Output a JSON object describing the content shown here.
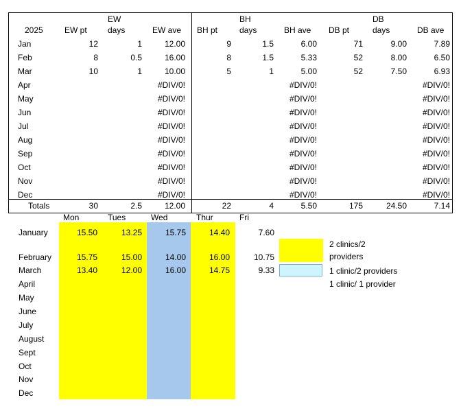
{
  "top_table": {
    "year": "2025",
    "headers": {
      "ew_group": "EW",
      "ew_pt": "EW pt",
      "ew_days": "days",
      "ew_ave": "EW ave",
      "bh_group": "BH",
      "bh_pt": "BH pt",
      "bh_days": "days",
      "bh_ave": "BH ave",
      "db_group": "DB",
      "db_pt": "DB pt",
      "db_days": "days",
      "db_ave": "DB ave"
    },
    "rows": [
      {
        "month": "Jan",
        "ew_pt": "12",
        "ew_days": "1",
        "ew_ave": "12.00",
        "bh_pt": "9",
        "bh_days": "1.5",
        "bh_ave": "6.00",
        "db_pt": "71",
        "db_days": "9.00",
        "db_ave": "7.89"
      },
      {
        "month": "Feb",
        "ew_pt": "8",
        "ew_days": "0.5",
        "ew_ave": "16.00",
        "bh_pt": "8",
        "bh_days": "1.5",
        "bh_ave": "5.33",
        "db_pt": "52",
        "db_days": "8.00",
        "db_ave": "6.50"
      },
      {
        "month": "Mar",
        "ew_pt": "10",
        "ew_days": "1",
        "ew_ave": "10.00",
        "bh_pt": "5",
        "bh_days": "1",
        "bh_ave": "5.00",
        "db_pt": "52",
        "db_days": "7.50",
        "db_ave": "6.93"
      },
      {
        "month": "Apr",
        "ew_pt": "",
        "ew_days": "",
        "ew_ave": "#DIV/0!",
        "bh_pt": "",
        "bh_days": "",
        "bh_ave": "#DIV/0!",
        "db_pt": "",
        "db_days": "",
        "db_ave": "#DIV/0!"
      },
      {
        "month": "May",
        "ew_pt": "",
        "ew_days": "",
        "ew_ave": "#DIV/0!",
        "bh_pt": "",
        "bh_days": "",
        "bh_ave": "#DIV/0!",
        "db_pt": "",
        "db_days": "",
        "db_ave": "#DIV/0!"
      },
      {
        "month": "Jun",
        "ew_pt": "",
        "ew_days": "",
        "ew_ave": "#DIV/0!",
        "bh_pt": "",
        "bh_days": "",
        "bh_ave": "#DIV/0!",
        "db_pt": "",
        "db_days": "",
        "db_ave": "#DIV/0!"
      },
      {
        "month": "Jul",
        "ew_pt": "",
        "ew_days": "",
        "ew_ave": "#DIV/0!",
        "bh_pt": "",
        "bh_days": "",
        "bh_ave": "#DIV/0!",
        "db_pt": "",
        "db_days": "",
        "db_ave": "#DIV/0!"
      },
      {
        "month": "Aug",
        "ew_pt": "",
        "ew_days": "",
        "ew_ave": "#DIV/0!",
        "bh_pt": "",
        "bh_days": "",
        "bh_ave": "#DIV/0!",
        "db_pt": "",
        "db_days": "",
        "db_ave": "#DIV/0!"
      },
      {
        "month": "Sep",
        "ew_pt": "",
        "ew_days": "",
        "ew_ave": "#DIV/0!",
        "bh_pt": "",
        "bh_days": "",
        "bh_ave": "#DIV/0!",
        "db_pt": "",
        "db_days": "",
        "db_ave": "#DIV/0!"
      },
      {
        "month": "Oct",
        "ew_pt": "",
        "ew_days": "",
        "ew_ave": "#DIV/0!",
        "bh_pt": "",
        "bh_days": "",
        "bh_ave": "#DIV/0!",
        "db_pt": "",
        "db_days": "",
        "db_ave": "#DIV/0!"
      },
      {
        "month": "Nov",
        "ew_pt": "",
        "ew_days": "",
        "ew_ave": "#DIV/0!",
        "bh_pt": "",
        "bh_days": "",
        "bh_ave": "#DIV/0!",
        "db_pt": "",
        "db_days": "",
        "db_ave": "#DIV/0!"
      },
      {
        "month": "Dec",
        "ew_pt": "",
        "ew_days": "",
        "ew_ave": "#DIV/0!",
        "bh_pt": "",
        "bh_days": "",
        "bh_ave": "#DIV/0!",
        "db_pt": "",
        "db_days": "",
        "db_ave": "#DIV/0!"
      }
    ],
    "totals": {
      "label": "Totals",
      "ew_pt": "30",
      "ew_days": "2.5",
      "ew_ave": "12.00",
      "bh_pt": "22",
      "bh_days": "4",
      "bh_ave": "5.50",
      "db_pt": "175",
      "db_days": "24.50",
      "db_ave": "7.14"
    }
  },
  "weekly_table": {
    "day_headers": {
      "mon": "Mon",
      "tues": "Tues",
      "wed": "Wed",
      "thur": "Thur",
      "fri": "Fri"
    },
    "rows": [
      {
        "month": "January",
        "mon": "15.50",
        "tues": "13.25",
        "wed": "15.75",
        "thur": "14.40",
        "fri": "7.60"
      },
      {
        "month": "February",
        "mon": "15.75",
        "tues": "15.00",
        "wed": "14.00",
        "thur": "16.00",
        "fri": "10.75"
      },
      {
        "month": "March",
        "mon": "13.40",
        "tues": "12.00",
        "wed": "16.00",
        "thur": "14.75",
        "fri": "9.33"
      },
      {
        "month": "April"
      },
      {
        "month": "May"
      },
      {
        "month": "June"
      },
      {
        "month": "July"
      },
      {
        "month": "August"
      },
      {
        "month": "Sept"
      },
      {
        "month": "Oct"
      },
      {
        "month": "Nov"
      },
      {
        "month": "Dec"
      }
    ]
  },
  "legend": {
    "two_clinics_line1": "2 clinics/2",
    "two_clinics_line2": "providers",
    "one_clinic_two": "1 clinic/2 providers",
    "one_clinic_one": "1 clinic/ 1 provider"
  },
  "colors": {
    "yellow_fill": "#ffff00",
    "blue_fill": "#a6c8ec",
    "light_cyan_fill": "#ccf5ff"
  }
}
